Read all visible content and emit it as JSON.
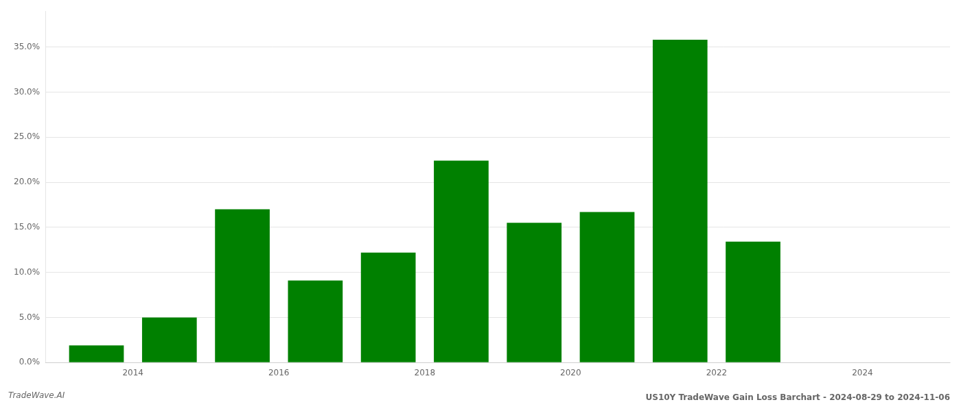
{
  "chart_data": {
    "type": "bar",
    "title": "US10Y TradeWave Gain Loss Barchart - 2024-08-29 to 2024-11-06",
    "annotations": [
      "TradeWave.AI"
    ],
    "x": [
      2013.5,
      2014.5,
      2015.5,
      2016.5,
      2017.5,
      2018.5,
      2019.5,
      2020.5,
      2021.5,
      2022.5,
      2023.5
    ],
    "values": [
      0.019,
      0.05,
      0.17,
      0.091,
      0.122,
      0.224,
      0.155,
      0.167,
      0.358,
      0.134,
      0.0
    ],
    "color": "#008000",
    "xlim": [
      2012.8,
      2025.2
    ],
    "xticks": [
      2014,
      2016,
      2018,
      2020,
      2022,
      2024
    ],
    "ylim": [
      0.0,
      0.39
    ],
    "yticks": [
      {
        "value": 0.0,
        "label": "0.0%"
      },
      {
        "value": 0.05,
        "label": "5.0%"
      },
      {
        "value": 0.1,
        "label": "10.0%"
      },
      {
        "value": 0.15,
        "label": "15.0%"
      },
      {
        "value": 0.2,
        "label": "20.0%"
      },
      {
        "value": 0.25,
        "label": "25.0%"
      },
      {
        "value": 0.3,
        "label": "30.0%"
      },
      {
        "value": 0.35,
        "label": "35.0%"
      }
    ],
    "grid": "y"
  }
}
